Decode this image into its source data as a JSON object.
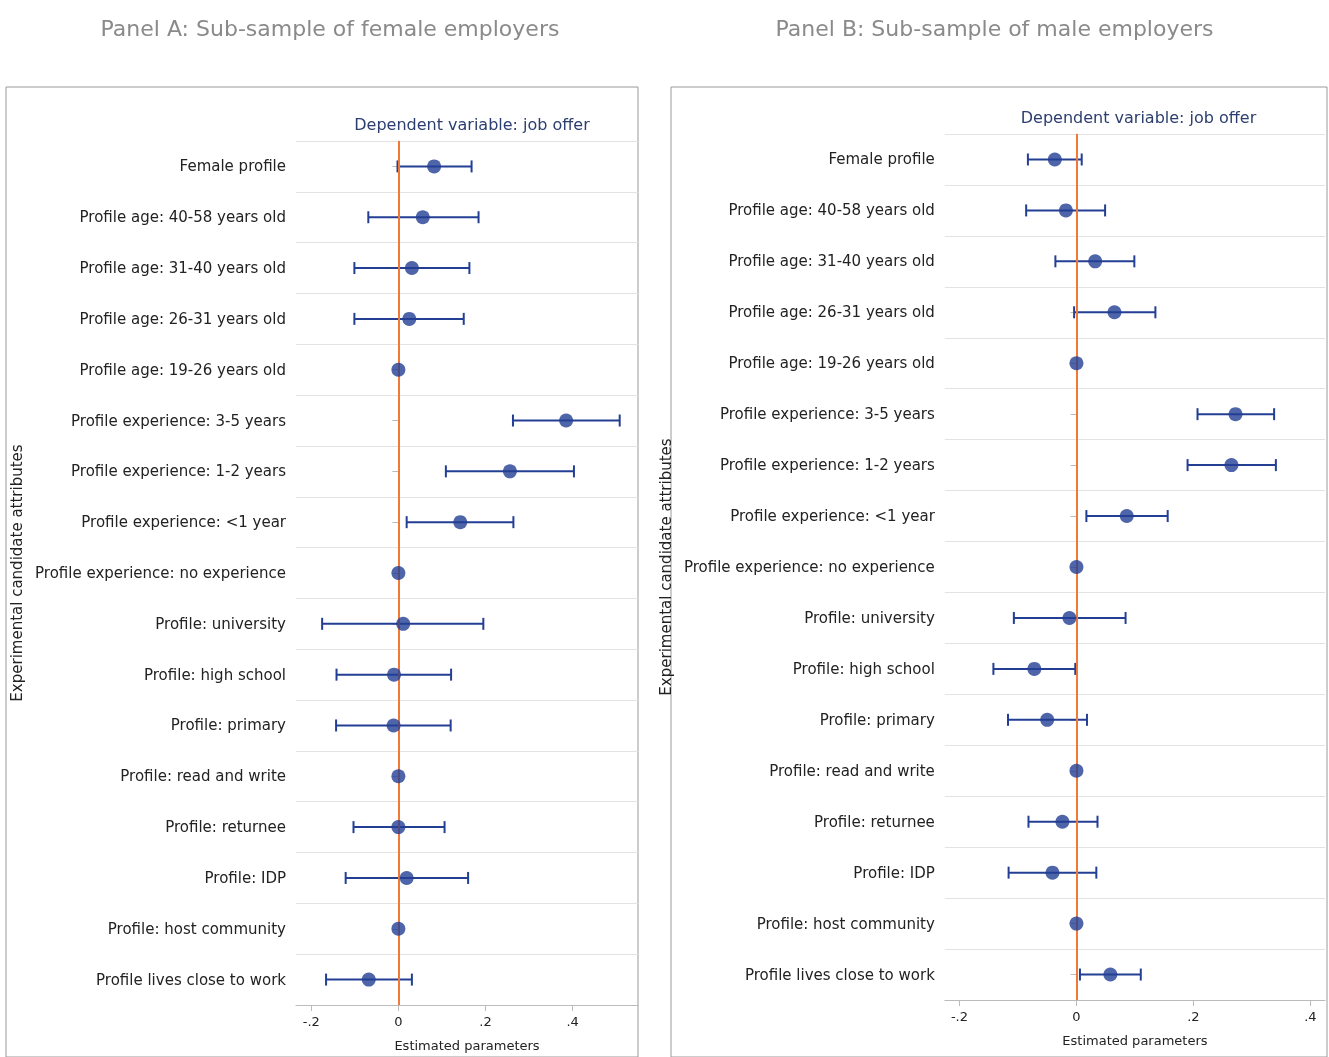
{
  "chart_data": [
    {
      "type": "scatter",
      "title": "Panel A: Sub-sample of female employers",
      "subtitle": "Dependent variable: job offer",
      "xlabel": "Estimated parameters",
      "ylabel": "Experimental candidate attributes",
      "orientation": "horizontal",
      "categories": [
        "Female profile",
        "Profile age: 40-58 years old",
        "Profile age: 31-40 years old",
        "Profile age: 26-31 years old",
        "Profile age: 19-26 years old",
        "Profile experience: 3-5 years",
        "Profile experience: 1-2 years",
        "Profile experience: <1 year",
        "Profile experience: no experience",
        "Profile: university",
        "Profile: high school",
        "Profile: primary",
        "Profile: read and write",
        "Profile: returnee",
        "Profile: IDP",
        "Profile: host community",
        "Profile lives close to work"
      ],
      "series": [
        {
          "color": "#233f94",
          "values": [
            0.082,
            0.056,
            0.031,
            0.025,
            0,
            0.385,
            0.256,
            0.142,
            0,
            0.011,
            -0.01,
            -0.011,
            0,
            0,
            0.019,
            0,
            -0.068
          ],
          "errors": [
            [
              -0.002,
              0.168
            ],
            [
              -0.069,
              0.184
            ],
            [
              -0.101,
              0.163
            ],
            [
              -0.101,
              0.15
            ],
            null,
            [
              0.263,
              0.508
            ],
            [
              0.109,
              0.403
            ],
            [
              0.019,
              0.264
            ],
            null,
            [
              -0.175,
              0.195
            ],
            [
              -0.142,
              0.121
            ],
            [
              -0.143,
              0.12
            ],
            null,
            [
              -0.103,
              0.106
            ],
            [
              -0.121,
              0.16
            ],
            null,
            [
              -0.166,
              0.031
            ]
          ]
        }
      ],
      "xlim": [
        -0.235,
        0.55
      ],
      "xticks": [
        {
          "value": -0.2,
          "label": "-.2"
        },
        0,
        {
          "value": 0.2,
          "label": ".2"
        },
        {
          "value": 0.4,
          "label": ".4"
        }
      ],
      "ref_lines": [
        {
          "axis": "x",
          "value": 0,
          "color": "#f07838"
        }
      ],
      "grid": "y",
      "marker": "circle"
    },
    {
      "type": "scatter",
      "title": "Panel B: Sub-sample of male employers",
      "subtitle": "Dependent variable: job offer",
      "xlabel": "Estimated parameters",
      "ylabel": "Experimental candidate attributes",
      "orientation": "horizontal",
      "categories": [
        "Female profile",
        "Profile age: 40-58 years old",
        "Profile age: 31-40 years old",
        "Profile age: 26-31 years old",
        "Profile age: 19-26 years old",
        "Profile experience: 3-5 years",
        "Profile experience: 1-2 years",
        "Profile experience: <1 year",
        "Profile experience: no experience",
        "Profile: university",
        "Profile: high school",
        "Profile: primary",
        "Profile: read and write",
        "Profile: returnee",
        "Profile: IDP",
        "Profile: host community",
        "Profile lives close to work"
      ],
      "series": [
        {
          "color": "#233f94",
          "values": [
            -0.037,
            -0.018,
            0.032,
            0.065,
            0,
            0.272,
            0.265,
            0.086,
            0,
            -0.012,
            -0.072,
            -0.05,
            0,
            -0.024,
            -0.041,
            0,
            0.058
          ],
          "errors": [
            [
              -0.083,
              0.009
            ],
            [
              -0.086,
              0.049
            ],
            [
              -0.036,
              0.099
            ],
            [
              -0.004,
              0.135
            ],
            null,
            [
              0.207,
              0.338
            ],
            [
              0.19,
              0.341
            ],
            [
              0.017,
              0.156
            ],
            null,
            [
              -0.107,
              0.084
            ],
            [
              -0.142,
              -0.002
            ],
            [
              -0.117,
              0.018
            ],
            null,
            [
              -0.082,
              0.036
            ],
            [
              -0.116,
              0.034
            ],
            null,
            [
              0.006,
              0.11
            ]
          ]
        }
      ],
      "xlim": [
        -0.225,
        0.425
      ],
      "xticks": [
        {
          "value": -0.2,
          "label": "-.2"
        },
        0,
        {
          "value": 0.2,
          "label": ".2"
        },
        {
          "value": 0.4,
          "label": ".4"
        }
      ],
      "ref_lines": [
        {
          "axis": "x",
          "value": 0,
          "color": "#f07838"
        }
      ],
      "grid": "y",
      "marker": "circle"
    }
  ]
}
